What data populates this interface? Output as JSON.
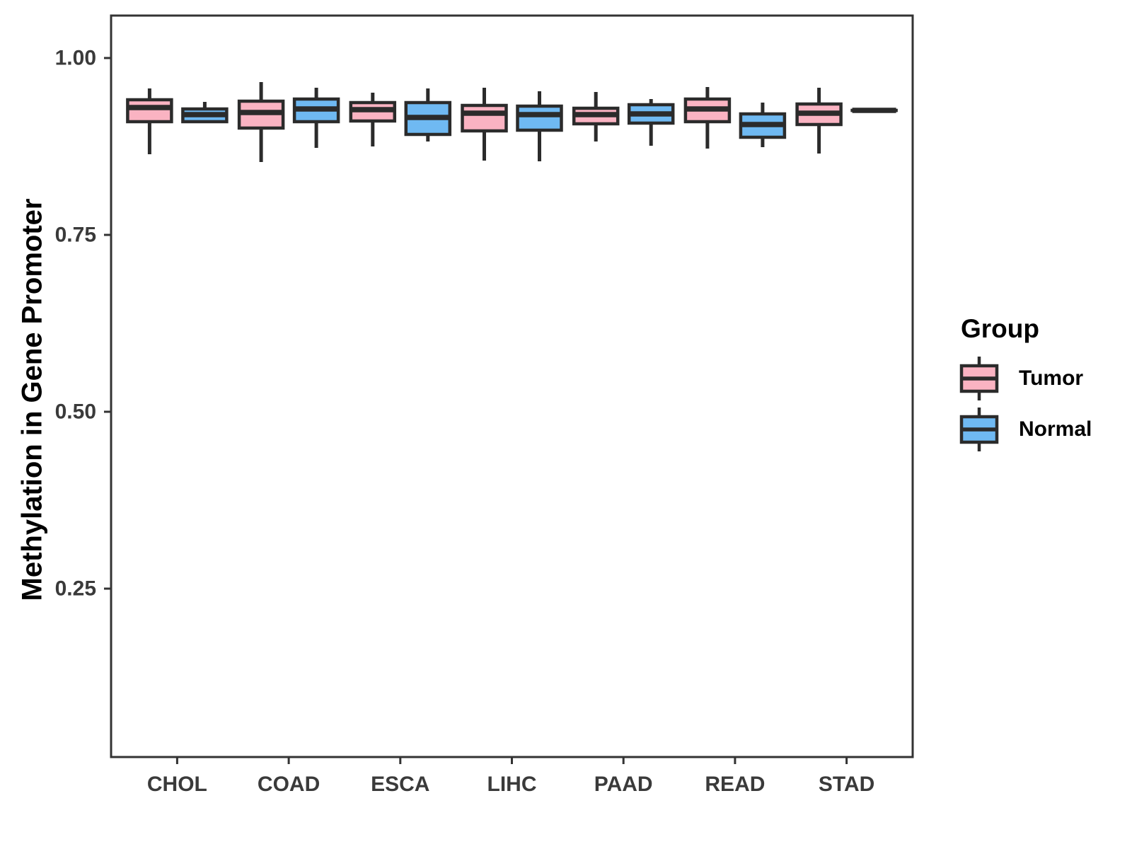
{
  "chart_data": {
    "type": "boxplot",
    "title": "",
    "xlabel": "",
    "ylabel": "Methylation in Gene Promoter",
    "categories": [
      "CHOL",
      "COAD",
      "ESCA",
      "LIHC",
      "PAAD",
      "READ",
      "STAD"
    ],
    "y_axis": {
      "ticks": [
        1.0,
        0.75,
        0.5,
        0.25
      ],
      "tick_labels": [
        "1.00",
        "0.75",
        "0.50",
        "0.25"
      ],
      "range": [
        0.012,
        1.06
      ]
    },
    "grid": "off",
    "legend": {
      "title": "Group",
      "position": "right",
      "entries": [
        {
          "label": "Tumor",
          "color": "#FAB3C2"
        },
        {
          "label": "Normal",
          "color": "#6FB9F2"
        }
      ]
    },
    "series": [
      {
        "name": "Tumor",
        "color": "#FAB3C2",
        "stats": [
          {
            "category": "CHOL",
            "low": 0.864,
            "q1": 0.91,
            "median": 0.93,
            "q3": 0.941,
            "high": 0.957
          },
          {
            "category": "COAD",
            "low": 0.853,
            "q1": 0.901,
            "median": 0.923,
            "q3": 0.939,
            "high": 0.966
          },
          {
            "category": "ESCA",
            "low": 0.875,
            "q1": 0.911,
            "median": 0.927,
            "q3": 0.937,
            "high": 0.951
          },
          {
            "category": "LIHC",
            "low": 0.855,
            "q1": 0.897,
            "median": 0.922,
            "q3": 0.933,
            "high": 0.958
          },
          {
            "category": "PAAD",
            "low": 0.882,
            "q1": 0.907,
            "median": 0.92,
            "q3": 0.929,
            "high": 0.952
          },
          {
            "category": "READ",
            "low": 0.872,
            "q1": 0.91,
            "median": 0.928,
            "q3": 0.942,
            "high": 0.959
          },
          {
            "category": "STAD",
            "low": 0.865,
            "q1": 0.906,
            "median": 0.922,
            "q3": 0.935,
            "high": 0.958
          }
        ]
      },
      {
        "name": "Normal",
        "color": "#6FB9F2",
        "stats": [
          {
            "category": "CHOL",
            "low": 0.91,
            "q1": 0.91,
            "median": 0.92,
            "q3": 0.928,
            "high": 0.938
          },
          {
            "category": "COAD",
            "low": 0.873,
            "q1": 0.91,
            "median": 0.928,
            "q3": 0.942,
            "high": 0.958
          },
          {
            "category": "ESCA",
            "low": 0.882,
            "q1": 0.892,
            "median": 0.916,
            "q3": 0.937,
            "high": 0.957
          },
          {
            "category": "LIHC",
            "low": 0.854,
            "q1": 0.898,
            "median": 0.92,
            "q3": 0.932,
            "high": 0.953
          },
          {
            "category": "PAAD",
            "low": 0.876,
            "q1": 0.908,
            "median": 0.921,
            "q3": 0.934,
            "high": 0.942
          },
          {
            "category": "READ",
            "low": 0.874,
            "q1": 0.888,
            "median": 0.906,
            "q3": 0.921,
            "high": 0.937
          },
          {
            "category": "STAD",
            "low": 0.926,
            "q1": 0.926,
            "median": 0.926,
            "q3": 0.926,
            "high": 0.926
          }
        ]
      }
    ],
    "colors": {
      "box_stroke": "#2B2B2B",
      "axis_text": "#3A3A3A",
      "axis_title": "#000000",
      "panel_border": "#333333",
      "background": "#FFFFFF"
    }
  }
}
